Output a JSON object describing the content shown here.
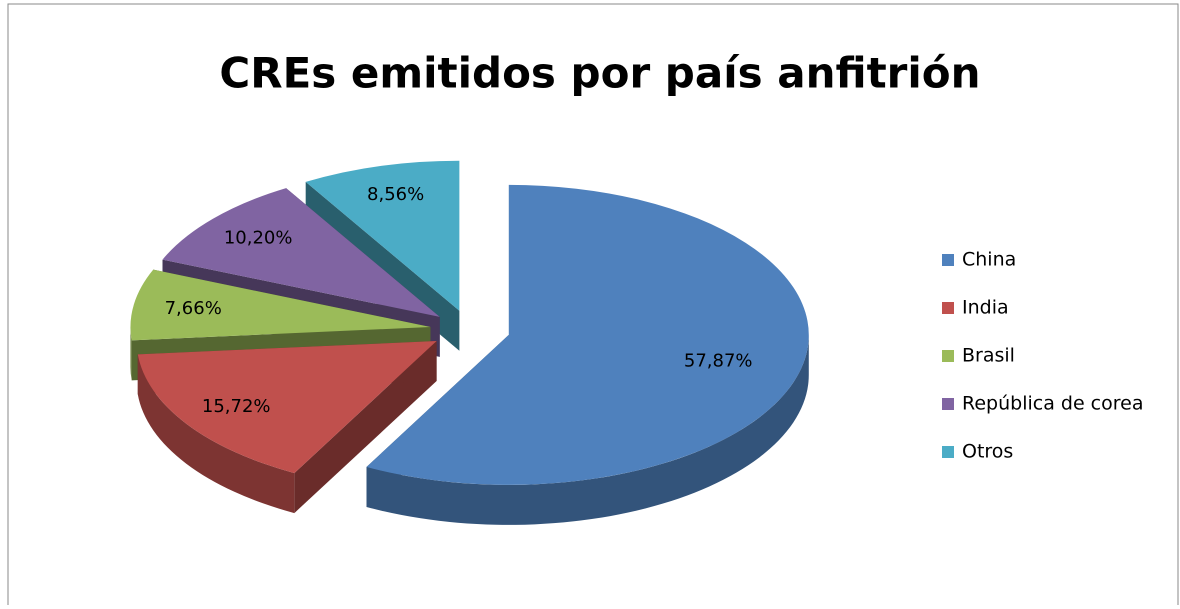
{
  "chart_data": {
    "type": "pie",
    "title": "CREs emitidos por país anfitrión",
    "categories": [
      "China",
      "India",
      "Brasil",
      "República de corea",
      "Otros"
    ],
    "values": [
      57.87,
      15.72,
      7.66,
      10.2,
      8.56
    ],
    "value_labels": [
      "57,87%",
      "15,72%",
      "7,66%",
      "10,20%",
      "8,56%"
    ],
    "colors": [
      "#4f81bd",
      "#c0504d",
      "#9bbb59",
      "#8064a2",
      "#4bacc6"
    ],
    "legend": "right"
  }
}
